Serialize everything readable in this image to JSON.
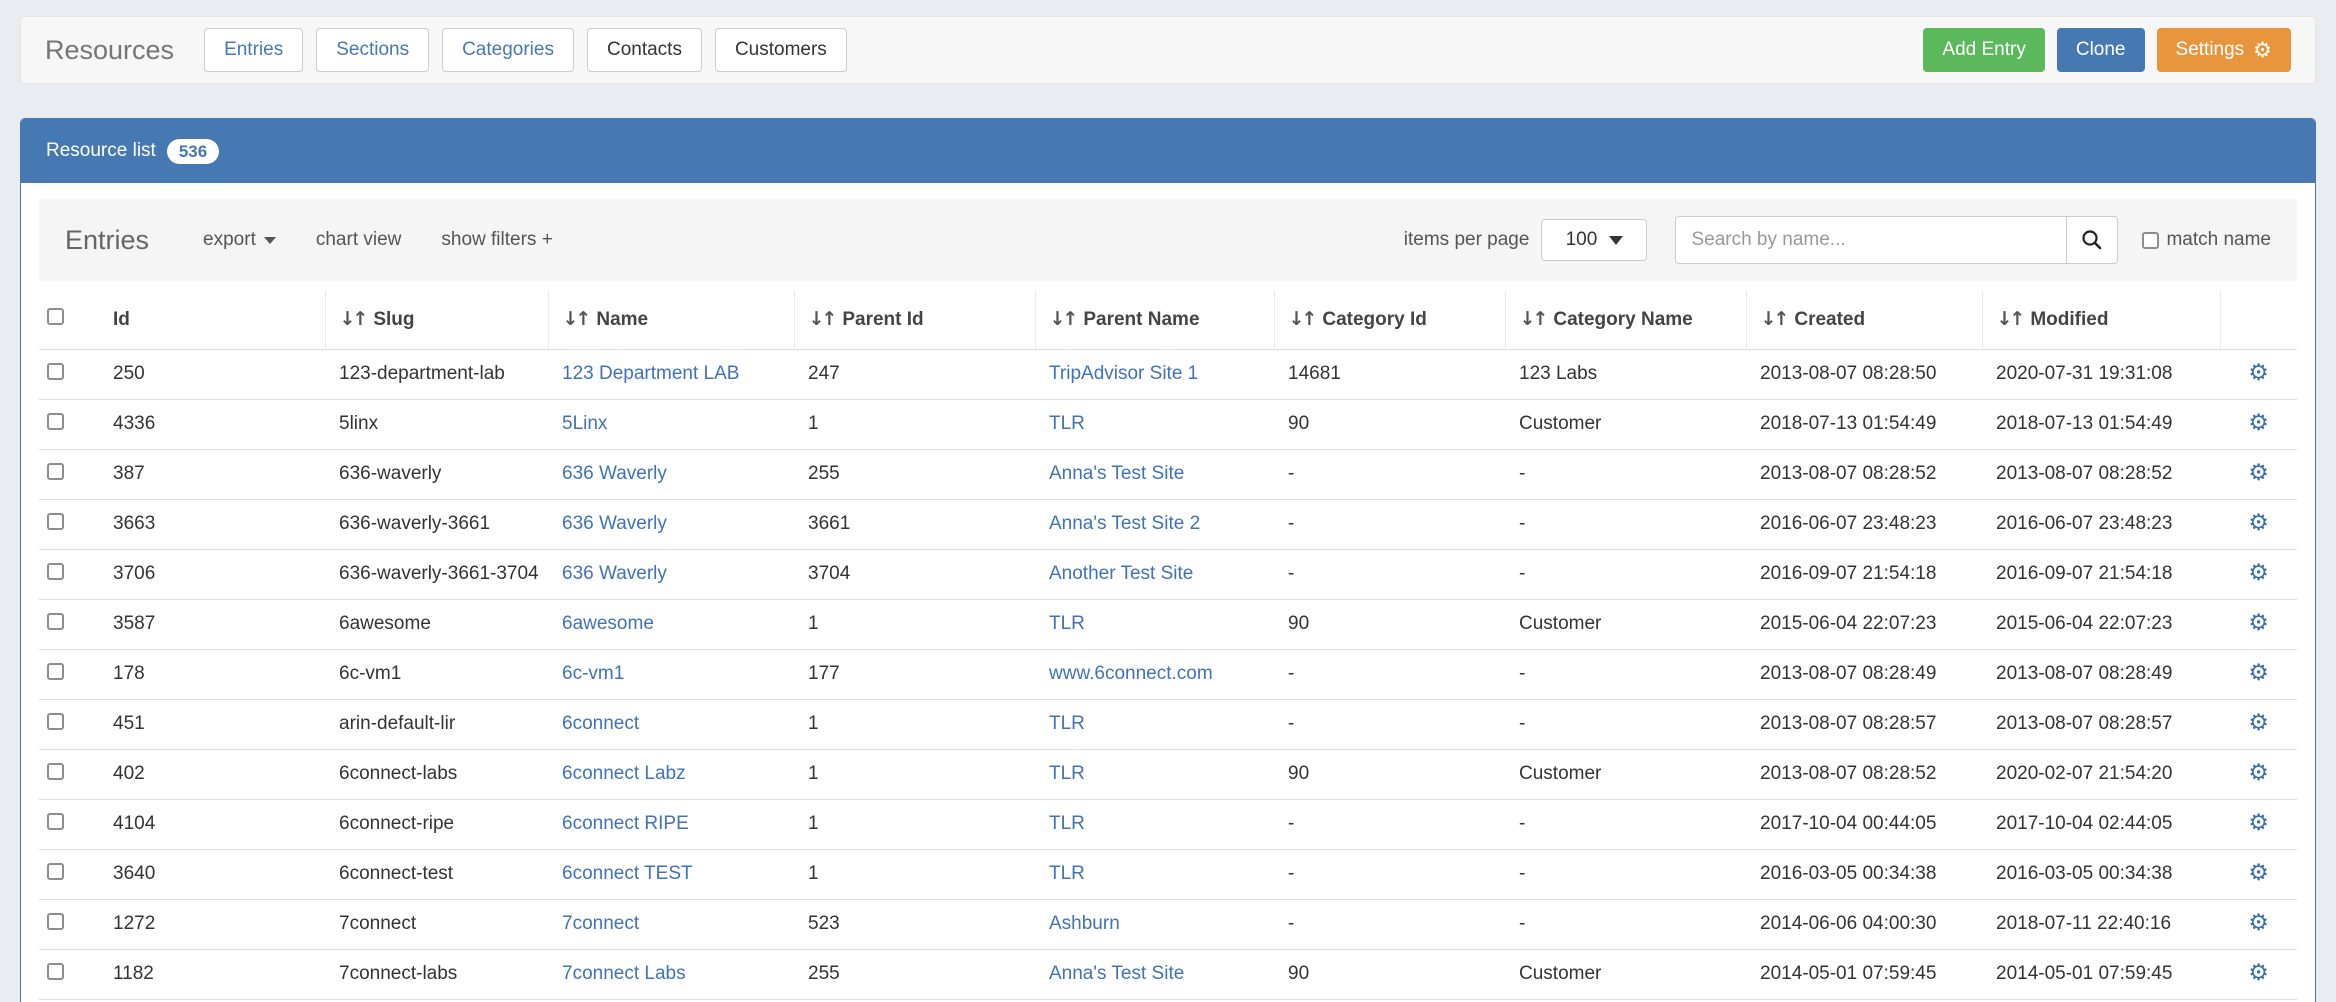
{
  "header": {
    "title": "Resources",
    "tabs": [
      {
        "label": "Entries",
        "style": "link"
      },
      {
        "label": "Sections",
        "style": "link"
      },
      {
        "label": "Categories",
        "style": "link"
      },
      {
        "label": "Contacts",
        "style": "plain"
      },
      {
        "label": "Customers",
        "style": "plain"
      }
    ],
    "actions": [
      {
        "label": "Add Entry",
        "color": "#5cb85c",
        "icon": null
      },
      {
        "label": "Clone",
        "color": "#4678b2",
        "icon": null
      },
      {
        "label": "Settings",
        "color": "#e8963e",
        "icon": "gear"
      }
    ]
  },
  "panel": {
    "title": "Resource list",
    "badge": "536"
  },
  "toolbar": {
    "heading": "Entries",
    "links": [
      {
        "label": "export",
        "caret": true
      },
      {
        "label": "chart view",
        "caret": false
      },
      {
        "label": "show filters +",
        "caret": false
      }
    ],
    "items_per_page_label": "items per page",
    "items_per_page_value": "100",
    "search_placeholder": "Search by name...",
    "match_name_label": "match name"
  },
  "icons": {
    "sort": "↓↑",
    "gear": "⚙",
    "search": "magnifier"
  },
  "colors": {
    "panel_blue": "#4678b2",
    "link_blue": "#3f72b8",
    "button_green": "#5cb85c",
    "button_orange": "#e8963e",
    "page_background": "#e9edf1"
  },
  "table": {
    "columns": [
      {
        "label": "Id",
        "sortable": false
      },
      {
        "label": "Slug",
        "sortable": true
      },
      {
        "label": "Name",
        "sortable": true
      },
      {
        "label": "Parent Id",
        "sortable": true
      },
      {
        "label": "Parent Name",
        "sortable": true
      },
      {
        "label": "Category Id",
        "sortable": true
      },
      {
        "label": "Category Name",
        "sortable": true
      },
      {
        "label": "Created",
        "sortable": true
      },
      {
        "label": "Modified",
        "sortable": true
      }
    ],
    "rows": [
      {
        "id": "250",
        "slug": "123-department-lab",
        "name": "123 Department LAB",
        "parent_id": "247",
        "parent_name": "TripAdvisor Site 1",
        "category_id": "14681",
        "category_name": "123 Labs",
        "created": "2013-08-07 08:28:50",
        "modified": "2020-07-31 19:31:08"
      },
      {
        "id": "4336",
        "slug": "5linx",
        "name": "5Linx",
        "parent_id": "1",
        "parent_name": "TLR",
        "category_id": "90",
        "category_name": "Customer",
        "created": "2018-07-13 01:54:49",
        "modified": "2018-07-13 01:54:49"
      },
      {
        "id": "387",
        "slug": "636-waverly",
        "name": "636 Waverly",
        "parent_id": "255",
        "parent_name": "Anna's Test Site",
        "category_id": "-",
        "category_name": "-",
        "created": "2013-08-07 08:28:52",
        "modified": "2013-08-07 08:28:52"
      },
      {
        "id": "3663",
        "slug": "636-waverly-3661",
        "name": "636 Waverly",
        "parent_id": "3661",
        "parent_name": "Anna's Test Site 2",
        "category_id": "-",
        "category_name": "-",
        "created": "2016-06-07 23:48:23",
        "modified": "2016-06-07 23:48:23"
      },
      {
        "id": "3706",
        "slug": "636-waverly-3661-3704",
        "name": "636 Waverly",
        "parent_id": "3704",
        "parent_name": "Another Test Site",
        "category_id": "-",
        "category_name": "-",
        "created": "2016-09-07 21:54:18",
        "modified": "2016-09-07 21:54:18"
      },
      {
        "id": "3587",
        "slug": "6awesome",
        "name": "6awesome",
        "parent_id": "1",
        "parent_name": "TLR",
        "category_id": "90",
        "category_name": "Customer",
        "created": "2015-06-04 22:07:23",
        "modified": "2015-06-04 22:07:23"
      },
      {
        "id": "178",
        "slug": "6c-vm1",
        "name": "6c-vm1",
        "parent_id": "177",
        "parent_name": "www.6connect.com",
        "category_id": "-",
        "category_name": "-",
        "created": "2013-08-07 08:28:49",
        "modified": "2013-08-07 08:28:49"
      },
      {
        "id": "451",
        "slug": "arin-default-lir",
        "name": "6connect",
        "parent_id": "1",
        "parent_name": "TLR",
        "category_id": "-",
        "category_name": "-",
        "created": "2013-08-07 08:28:57",
        "modified": "2013-08-07 08:28:57"
      },
      {
        "id": "402",
        "slug": "6connect-labs",
        "name": "6connect Labz",
        "parent_id": "1",
        "parent_name": "TLR",
        "category_id": "90",
        "category_name": "Customer",
        "created": "2013-08-07 08:28:52",
        "modified": "2020-02-07 21:54:20"
      },
      {
        "id": "4104",
        "slug": "6connect-ripe",
        "name": "6connect RIPE",
        "parent_id": "1",
        "parent_name": "TLR",
        "category_id": "-",
        "category_name": "-",
        "created": "2017-10-04 00:44:05",
        "modified": "2017-10-04 02:44:05"
      },
      {
        "id": "3640",
        "slug": "6connect-test",
        "name": "6connect TEST",
        "parent_id": "1",
        "parent_name": "TLR",
        "category_id": "-",
        "category_name": "-",
        "created": "2016-03-05 00:34:38",
        "modified": "2016-03-05 00:34:38"
      },
      {
        "id": "1272",
        "slug": "7connect",
        "name": "7connect",
        "parent_id": "523",
        "parent_name": "Ashburn",
        "category_id": "-",
        "category_name": "-",
        "created": "2014-06-06 04:00:30",
        "modified": "2018-07-11 22:40:16"
      },
      {
        "id": "1182",
        "slug": "7connect-labs",
        "name": "7connect Labs",
        "parent_id": "255",
        "parent_name": "Anna's Test Site",
        "category_id": "90",
        "category_name": "Customer",
        "created": "2014-05-01 07:59:45",
        "modified": "2014-05-01 07:59:45"
      }
    ]
  }
}
